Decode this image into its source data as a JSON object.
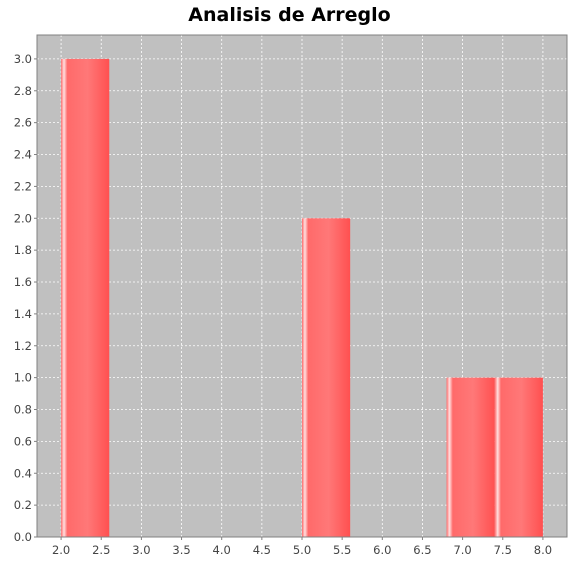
{
  "chart_data": {
    "type": "bar",
    "title": "Analisis de Arreglo",
    "xlabel": "",
    "ylabel": "",
    "xlim": [
      1.7,
      8.3
    ],
    "ylim": [
      0,
      3.15
    ],
    "x_ticks": [
      "2.0",
      "2.5",
      "3.0",
      "3.5",
      "4.0",
      "4.5",
      "5.0",
      "5.5",
      "6.0",
      "6.5",
      "7.0",
      "7.5",
      "8.0"
    ],
    "y_ticks": [
      "0.0",
      "0.2",
      "0.4",
      "0.6",
      "0.8",
      "1.0",
      "1.2",
      "1.4",
      "1.6",
      "1.8",
      "2.0",
      "2.2",
      "2.4",
      "2.6",
      "2.8",
      "3.0"
    ],
    "bars": [
      {
        "x_start": 2.0,
        "x_end": 2.6,
        "value": 3
      },
      {
        "x_start": 5.0,
        "x_end": 5.6,
        "value": 2
      },
      {
        "x_start": 6.8,
        "x_end": 7.4,
        "value": 1
      },
      {
        "x_start": 7.4,
        "x_end": 8.0,
        "value": 1
      }
    ],
    "grid": true,
    "legend": "none",
    "colors": {
      "plot_background": "#c0c0c0",
      "bar": "#ff5555",
      "gridline": "#ffffff"
    }
  }
}
